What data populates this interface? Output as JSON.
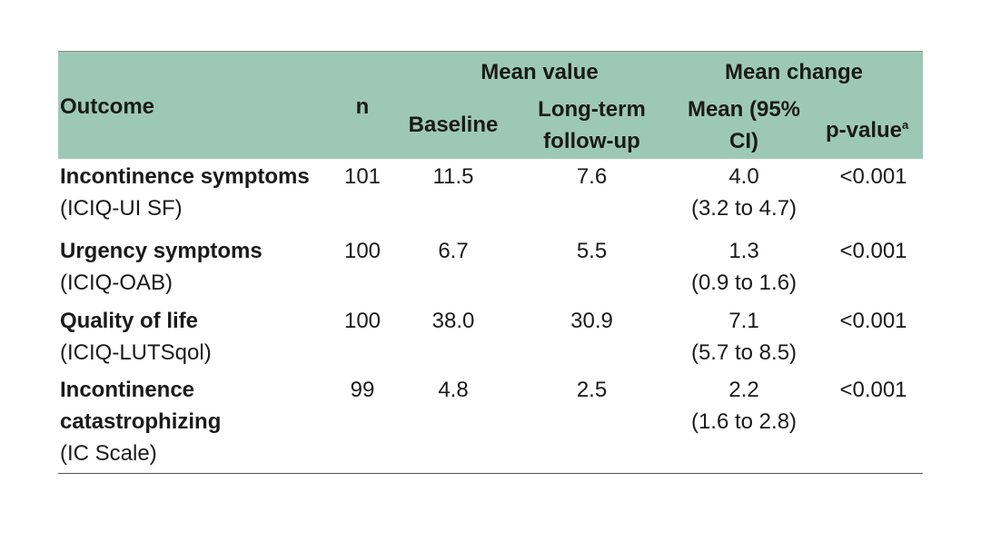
{
  "header": {
    "outcome": "Outcome",
    "n": "n",
    "mean_value": "Mean value",
    "mean_change": "Mean change",
    "baseline": "Baseline",
    "followup_line1": "Long-term",
    "followup_line2": "follow-up",
    "mean_ci_line1": "Mean (95%",
    "mean_ci_line2": "CI)",
    "p_value": "p-value",
    "p_value_sup": "a"
  },
  "rows": [
    {
      "name_lines": [
        "Incontinence symptoms"
      ],
      "sub": "(ICIQ-UI SF)",
      "n": "101",
      "baseline": "11.5",
      "followup": "7.6",
      "mean": "4.0",
      "ci": "(3.2 to 4.7)",
      "p": "<0.001"
    },
    {
      "name_lines": [
        "Urgency symptoms"
      ],
      "sub": "(ICIQ-OAB)",
      "n": "100",
      "baseline": "6.7",
      "followup": "5.5",
      "mean": "1.3",
      "ci": "(0.9 to 1.6)",
      "p": "<0.001"
    },
    {
      "name_lines": [
        "Quality of life"
      ],
      "sub": "(ICIQ-LUTSqol)",
      "n": "100",
      "baseline": "38.0",
      "followup": "30.9",
      "mean": "7.1",
      "ci": "(5.7 to 8.5)",
      "p": "<0.001"
    },
    {
      "name_lines": [
        "Incontinence",
        "catastrophizing"
      ],
      "sub": "(IC Scale)",
      "n": "99",
      "baseline": "4.8",
      "followup": "2.5",
      "mean": "2.2",
      "ci": "(1.6 to 2.8)",
      "p": "<0.001"
    }
  ]
}
